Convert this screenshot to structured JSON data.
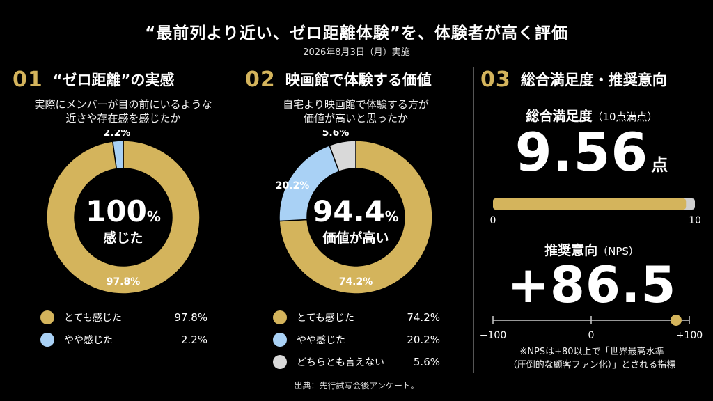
{
  "header": {
    "title": "“最前列より近い、ゼロ距離体験”を、体験者が高く評価",
    "date": "2026年8月3日（月）実施"
  },
  "panels": [
    {
      "num": "01",
      "title": "“ゼロ距離”の実感",
      "question": [
        "実際にメンバーが目の前にいるような",
        "近さや存在感を感じたか"
      ],
      "center_value": "100",
      "center_unit": "%",
      "center_label": "感じた",
      "legend": [
        {
          "label": "とても感じた",
          "value": "97.8%"
        },
        {
          "label": "やや感じた",
          "value": "2.2%"
        }
      ]
    },
    {
      "num": "02",
      "title": "映画館で体験する価値",
      "question": [
        "自宅より映画館で体験する方が",
        "価値が高いと思ったか"
      ],
      "center_value": "94.4",
      "center_unit": "%",
      "center_label": "価値が高い",
      "legend": [
        {
          "label": "とても感じた",
          "value": "74.2%"
        },
        {
          "label": "やや感じた",
          "value": "20.2%"
        },
        {
          "label": "どちらとも言えない",
          "value": "5.6%"
        }
      ]
    },
    {
      "num": "03",
      "title": "総合満足度・推奨意向",
      "satisfaction": {
        "label": "総合満足度",
        "sub": "（10点満点）",
        "value": "9.56",
        "unit": "点",
        "min_label": "0",
        "max_label": "10"
      },
      "nps": {
        "label": "推奨意向",
        "sub": "（NPS）",
        "value": "+86.5",
        "min_label": "−100",
        "mid_label": "0",
        "max_label": "+100",
        "note": [
          "※NPSは+80以上で「世界最高水準",
          "（圧倒的な顧客ファン化）」とされる指標"
        ]
      }
    }
  ],
  "source": "出典：先行試写会後アンケート。",
  "colors": {
    "gold": "#d4b45c",
    "blue": "#a9d1f5",
    "gray": "#d9d9d9",
    "track": "#cfcfcf"
  },
  "chart_data": [
    {
      "type": "pie",
      "categories": [
        "とても感じた",
        "やや感じた"
      ],
      "values": [
        97.8,
        2.2
      ],
      "data_labels": [
        "97.8%",
        "2.2%"
      ]
    },
    {
      "type": "pie",
      "categories": [
        "とても感じた",
        "やや感じた",
        "どちらとも言えない"
      ],
      "values": [
        74.2,
        20.2,
        5.6
      ],
      "data_labels": [
        "74.2%",
        "20.2%",
        "5.6%"
      ]
    },
    {
      "type": "bar",
      "categories": [
        "総合満足度"
      ],
      "values": [
        9.56
      ],
      "xlim": [
        0,
        10
      ]
    },
    {
      "type": "scatter",
      "categories": [
        "NPS"
      ],
      "values": [
        86.5
      ],
      "xlim": [
        -100,
        100
      ]
    }
  ]
}
